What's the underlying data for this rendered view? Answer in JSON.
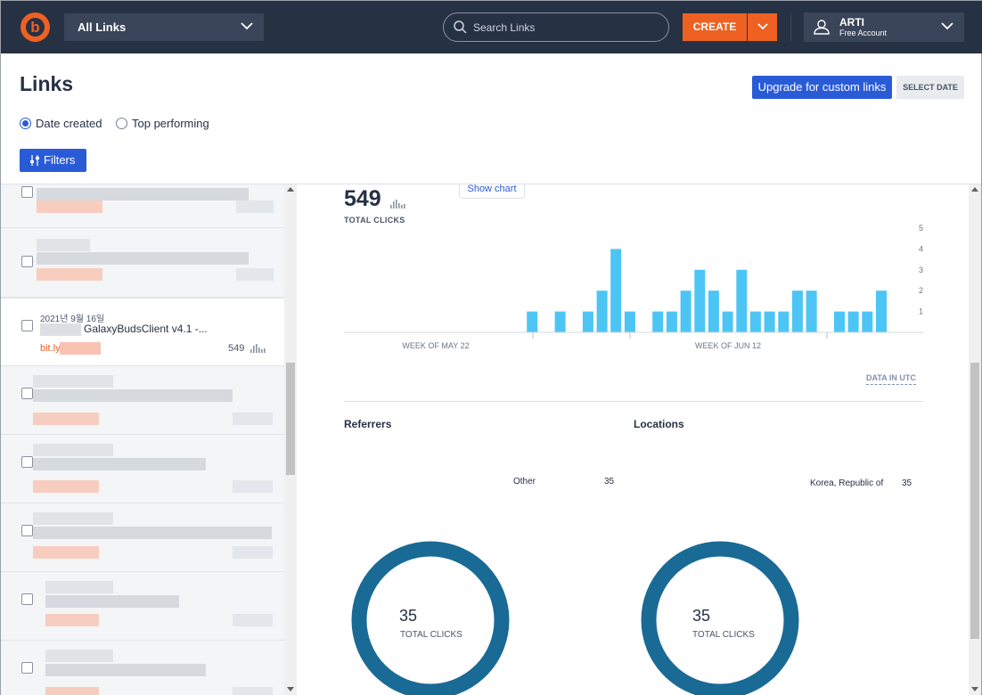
{
  "topbar": {
    "logo": "bitly-logo",
    "logo_letter": "b",
    "links_select": "All Links",
    "search_placeholder": "Search Links",
    "create_label": "CREATE",
    "account_name": "ARTI",
    "account_plan": "Free Account"
  },
  "header": {
    "title": "Links",
    "upgrade_label": "Upgrade for custom links",
    "select_date_label": "SELECT DATE",
    "sort_options": [
      {
        "label": "Date created",
        "selected": true
      },
      {
        "label": "Top performing",
        "selected": false
      }
    ],
    "filters_label": "Filters"
  },
  "list": {
    "active_item": {
      "date": "2021년 9월 16일",
      "title": "GalaxyBudsClient v4.1 -...",
      "short_link_visible": "bit.ly/3E",
      "clicks": "549"
    }
  },
  "detail": {
    "total_clicks": "549",
    "total_clicks_label": "TOTAL CLICKS",
    "show_chart_label": "Show chart",
    "data_in_utc": "DATA IN UTC",
    "referrers_title": "Referrers",
    "locations_title": "Locations",
    "referrers": [
      {
        "label": "Other",
        "value": "35"
      }
    ],
    "locations": [
      {
        "label": "Korea, Republic of",
        "value": "35"
      }
    ],
    "donut_referrers": {
      "value": "35",
      "label": "TOTAL CLICKS"
    },
    "donut_locations": {
      "value": "35",
      "label": "TOTAL CLICKS"
    }
  },
  "chart_data": {
    "type": "bar",
    "x_ticks": [
      "WEEK OF MAY 22",
      "WEEK OF JUN 12"
    ],
    "y_ticks": [
      1,
      2,
      3,
      4,
      5
    ],
    "ylim": [
      0,
      5
    ],
    "values": [
      0,
      0,
      0,
      0,
      0,
      0,
      0,
      0,
      0,
      0,
      0,
      0,
      0,
      1,
      0,
      1,
      0,
      1,
      2,
      4,
      1,
      0,
      1,
      1,
      2,
      3,
      2,
      1,
      3,
      1,
      1,
      1,
      2,
      2,
      0,
      1,
      1,
      1,
      2
    ],
    "color": "#4cc5f5"
  },
  "colors": {
    "topbar": "#273144",
    "brand_orange": "#ee6123",
    "primary_blue": "#2a5bd7",
    "donut": "#1a6a96"
  }
}
